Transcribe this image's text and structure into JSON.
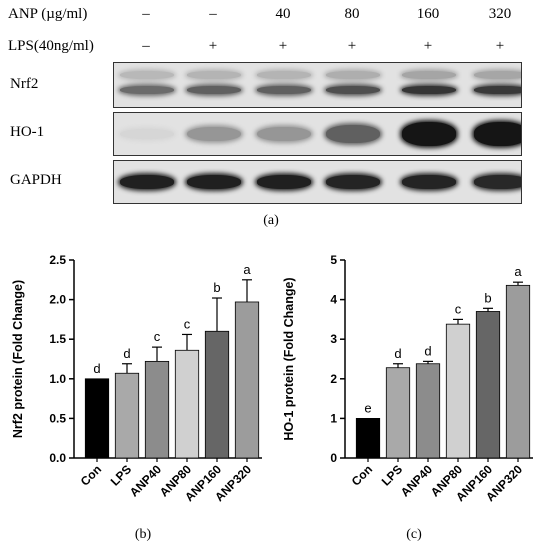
{
  "header": {
    "anp_label": "ANP (µg/ml)",
    "lps_label": "LPS(40ng/ml)",
    "anp_values": [
      "–",
      "–",
      "40",
      "80",
      "160",
      "320"
    ],
    "lps_values": [
      "–",
      "+",
      "+",
      "+",
      "+",
      "+"
    ]
  },
  "blots": [
    {
      "label": "Nrf2",
      "intensity": [
        0.55,
        0.6,
        0.6,
        0.68,
        0.8,
        0.78
      ]
    },
    {
      "label": "HO-1",
      "intensity": [
        0.05,
        0.35,
        0.35,
        0.6,
        0.95,
        0.95
      ]
    },
    {
      "label": "GAPDH",
      "intensity": [
        0.9,
        0.9,
        0.9,
        0.88,
        0.88,
        0.86
      ]
    }
  ],
  "captions": {
    "a": "(a)",
    "b": "(b)",
    "c": "(c)"
  },
  "chart_data": [
    {
      "type": "bar",
      "categories": [
        "Con",
        "LPS",
        "ANP40",
        "ANP80",
        "ANP160",
        "ANP320"
      ],
      "values": [
        1.0,
        1.07,
        1.22,
        1.36,
        1.6,
        1.97
      ],
      "errors": [
        0,
        0.12,
        0.18,
        0.2,
        0.42,
        0.28
      ],
      "labels": [
        "d",
        "d",
        "c",
        "c",
        "b",
        "a"
      ],
      "colors": [
        "#000000",
        "#a9a9a9",
        "#8c8c8c",
        "#d0d0d0",
        "#666666",
        "#9c9c9c"
      ],
      "ylabel": "Nrf2 protein (Fold Change)",
      "ylim": [
        0,
        2.5
      ],
      "yticks": [
        "0.0",
        "0.5",
        "1.0",
        "1.5",
        "2.0",
        "2.5"
      ]
    },
    {
      "type": "bar",
      "categories": [
        "Con",
        "LPS",
        "ANP40",
        "ANP80",
        "ANP160",
        "ANP320"
      ],
      "values": [
        1.0,
        2.28,
        2.38,
        3.38,
        3.7,
        4.36
      ],
      "errors": [
        0,
        0.1,
        0.06,
        0.12,
        0.08,
        0.08
      ],
      "labels": [
        "e",
        "d",
        "d",
        "c",
        "b",
        "a"
      ],
      "colors": [
        "#000000",
        "#a9a9a9",
        "#8c8c8c",
        "#d0d0d0",
        "#666666",
        "#9c9c9c"
      ],
      "ylabel": "HO-1 protein (Fold Change)",
      "ylim": [
        0,
        5
      ],
      "yticks": [
        "0",
        "1",
        "2",
        "3",
        "4",
        "5"
      ]
    }
  ]
}
